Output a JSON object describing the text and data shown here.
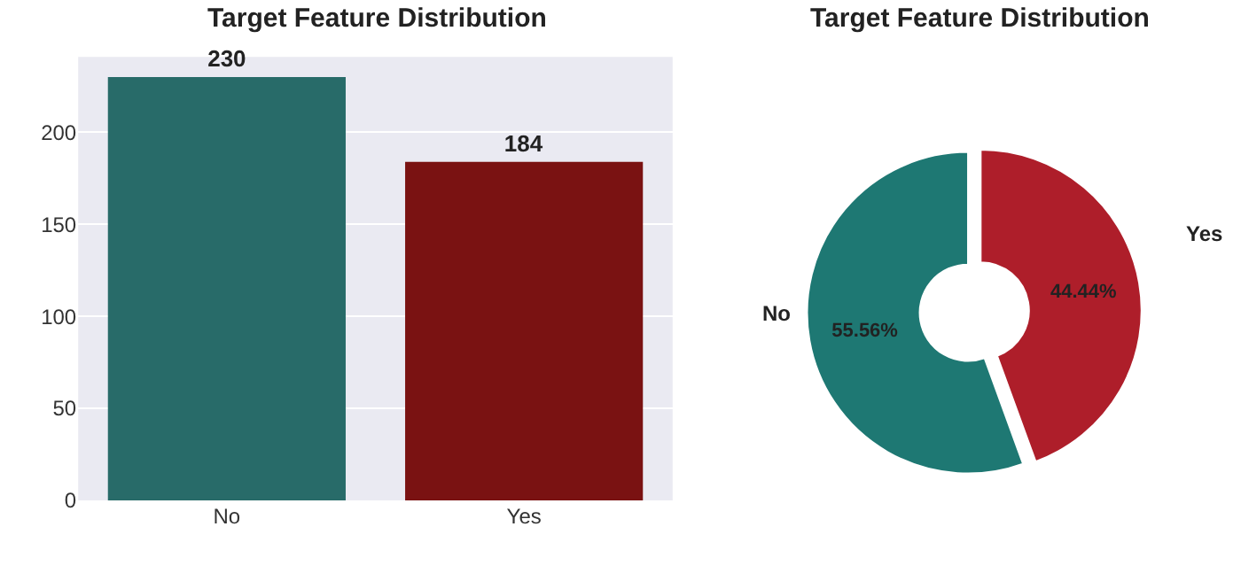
{
  "chart_data": [
    {
      "type": "bar",
      "title": "Target Feature Distribution",
      "categories": [
        "No",
        "Yes"
      ],
      "values": [
        230,
        184
      ],
      "colors": [
        "#286b69",
        "#7a1212"
      ],
      "ylim": [
        0,
        241
      ],
      "yticks": [
        0,
        50,
        100,
        150,
        200
      ],
      "grid": "y",
      "data_labels": true
    },
    {
      "type": "donut",
      "title": "Target Feature Distribution",
      "categories": [
        "No",
        "Yes"
      ],
      "values": [
        55.56,
        44.44
      ],
      "colors": [
        "#1e7873",
        "#ae1e2a"
      ],
      "value_labels": [
        "55.56%",
        "44.44%"
      ]
    }
  ]
}
